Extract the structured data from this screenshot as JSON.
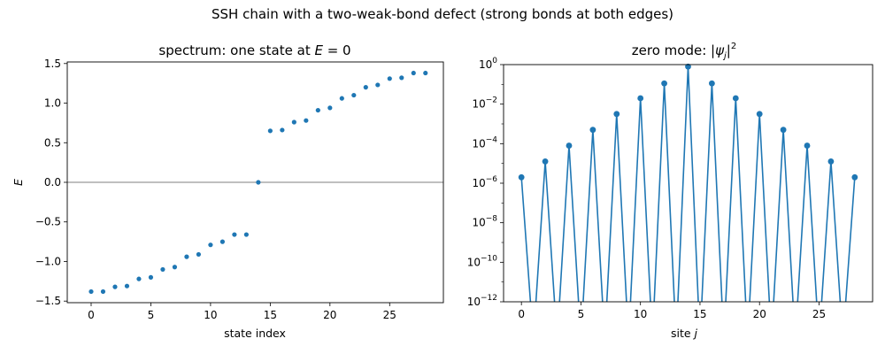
{
  "figure": {
    "suptitle": "SSH chain with a two-weak-bond defect (strong bonds at both edges)"
  },
  "chart_data": [
    {
      "type": "scatter",
      "title": "spectrum: one state at E = 0",
      "title_parts": {
        "prefix": "spectrum: one state at ",
        "math_var": "E",
        "suffix": " = 0"
      },
      "xlabel": "state index",
      "ylabel": "E",
      "xlim": [
        -2,
        29.5
      ],
      "ylim": [
        -1.52,
        1.52
      ],
      "xticks": [
        0,
        5,
        10,
        15,
        20,
        25
      ],
      "yticks": [
        -1.5,
        -1.0,
        -0.5,
        0.0,
        0.5,
        1.0,
        1.5
      ],
      "ytick_labels": [
        "−1.5",
        "−1.0",
        "−0.5",
        "0.0",
        "0.5",
        "1.0",
        "1.5"
      ],
      "zero_line": true,
      "color": "#1f77b4",
      "x": [
        0,
        1,
        2,
        3,
        4,
        5,
        6,
        7,
        8,
        9,
        10,
        11,
        12,
        13,
        14,
        15,
        16,
        17,
        18,
        19,
        20,
        21,
        22,
        23,
        24,
        25,
        26,
        27,
        28
      ],
      "y": [
        -1.38,
        -1.38,
        -1.32,
        -1.31,
        -1.22,
        -1.2,
        -1.1,
        -1.07,
        -0.94,
        -0.91,
        -0.79,
        -0.75,
        -0.66,
        -0.66,
        0.0,
        0.65,
        0.66,
        0.76,
        0.78,
        0.91,
        0.94,
        1.06,
        1.1,
        1.2,
        1.23,
        1.31,
        1.32,
        1.38,
        1.38
      ]
    },
    {
      "type": "line",
      "title": "zero mode: |ψj|²",
      "title_parts": {
        "prefix": "zero mode: |",
        "math_var": "ψ",
        "sub": "j",
        "suffix": "|",
        "sup": "2"
      },
      "xlabel": "site j",
      "xlabel_parts": {
        "prefix": "site ",
        "math_var": "j"
      },
      "ylabel": "",
      "yscale": "log",
      "xlim": [
        -1.5,
        29.5
      ],
      "ylim_exp": [
        -12,
        0
      ],
      "xticks": [
        0,
        5,
        10,
        15,
        20,
        25
      ],
      "yticks_exp": [
        0,
        -2,
        -4,
        -6,
        -8,
        -10,
        -12
      ],
      "color": "#1f77b4",
      "x": [
        0,
        1,
        2,
        3,
        4,
        5,
        6,
        7,
        8,
        9,
        10,
        11,
        12,
        13,
        14,
        15,
        16,
        17,
        18,
        19,
        20,
        21,
        22,
        23,
        24,
        25,
        26,
        27,
        28
      ],
      "log10_y": [
        -5.7,
        -14,
        -4.9,
        -14,
        -4.1,
        -14,
        -3.3,
        -14,
        -2.5,
        -14,
        -1.7,
        -14,
        -0.95,
        -14,
        -0.1,
        -14,
        -0.95,
        -14,
        -1.7,
        -14,
        -2.5,
        -14,
        -3.3,
        -14,
        -4.1,
        -14,
        -4.9,
        -14,
        -5.7
      ],
      "marker_at": [
        0,
        2,
        4,
        6,
        8,
        10,
        12,
        14,
        16,
        18,
        20,
        22,
        24,
        26,
        28
      ]
    }
  ]
}
